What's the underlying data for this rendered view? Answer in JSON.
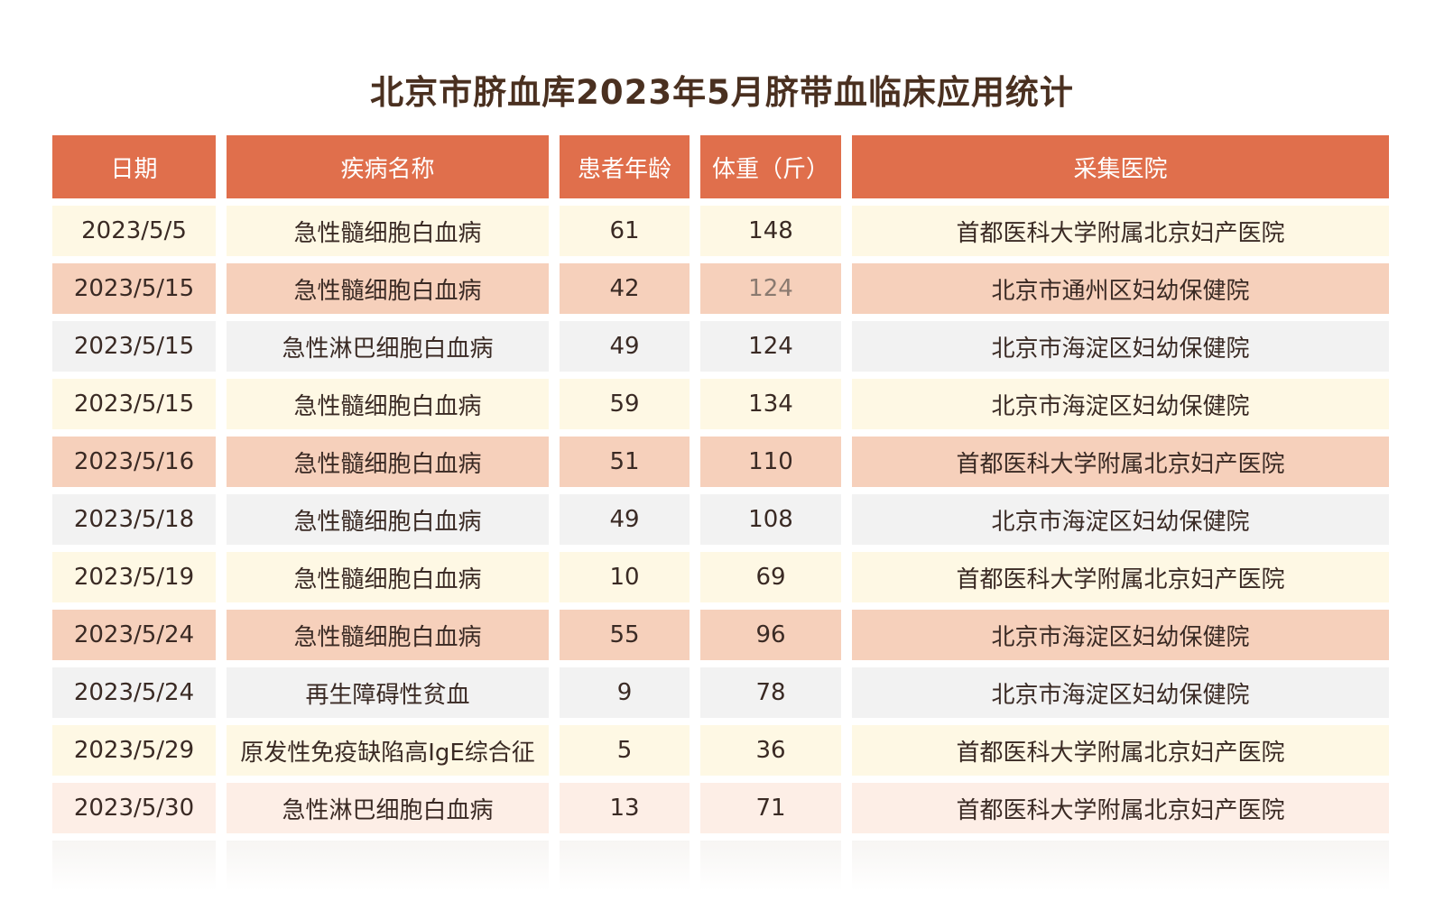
{
  "title": "北京市脐血库2023年5月脐带血临床应用统计",
  "columns": [
    "日期",
    "疾病名称",
    "患者年龄",
    "体重（斤）",
    "采集医院"
  ],
  "rows": [
    {
      "date": "2023/5/5",
      "disease": "急性髓细胞白血病",
      "age": "61",
      "weight": "148",
      "hospital": "首都医科大学附属北京妇产医院"
    },
    {
      "date": "2023/5/15",
      "disease": "急性髓细胞白血病",
      "age": "42",
      "weight": "124",
      "hospital": "北京市通州区妇幼保健院"
    },
    {
      "date": "2023/5/15",
      "disease": "急性淋巴细胞白血病",
      "age": "49",
      "weight": "124",
      "hospital": "北京市海淀区妇幼保健院"
    },
    {
      "date": "2023/5/15",
      "disease": "急性髓细胞白血病",
      "age": "59",
      "weight": "134",
      "hospital": "北京市海淀区妇幼保健院"
    },
    {
      "date": "2023/5/16",
      "disease": "急性髓细胞白血病",
      "age": "51",
      "weight": "110",
      "hospital": "首都医科大学附属北京妇产医院"
    },
    {
      "date": "2023/5/18",
      "disease": "急性髓细胞白血病",
      "age": "49",
      "weight": "108",
      "hospital": "北京市海淀区妇幼保健院"
    },
    {
      "date": "2023/5/19",
      "disease": "急性髓细胞白血病",
      "age": "10",
      "weight": "69",
      "hospital": "首都医科大学附属北京妇产医院"
    },
    {
      "date": "2023/5/24",
      "disease": "急性髓细胞白血病",
      "age": "55",
      "weight": "96",
      "hospital": "北京市海淀区妇幼保健院"
    },
    {
      "date": "2023/5/24",
      "disease": "再生障碍性贫血",
      "age": "9",
      "weight": "78",
      "hospital": "北京市海淀区妇幼保健院"
    },
    {
      "date": "2023/5/29",
      "disease": "原发性免疫缺陷高IgE综合征",
      "age": "5",
      "weight": "36",
      "hospital": "首都医科大学附属北京妇产医院"
    },
    {
      "date": "2023/5/30",
      "disease": "急性淋巴细胞白血病",
      "age": "13",
      "weight": "71",
      "hospital": "首都医科大学附属北京妇产医院"
    }
  ],
  "colors": {
    "header": "#e06f4c",
    "row_yellow": "#fef8e4",
    "row_salmon": "#f6d0bb",
    "row_gray": "#f2f2f2"
  }
}
